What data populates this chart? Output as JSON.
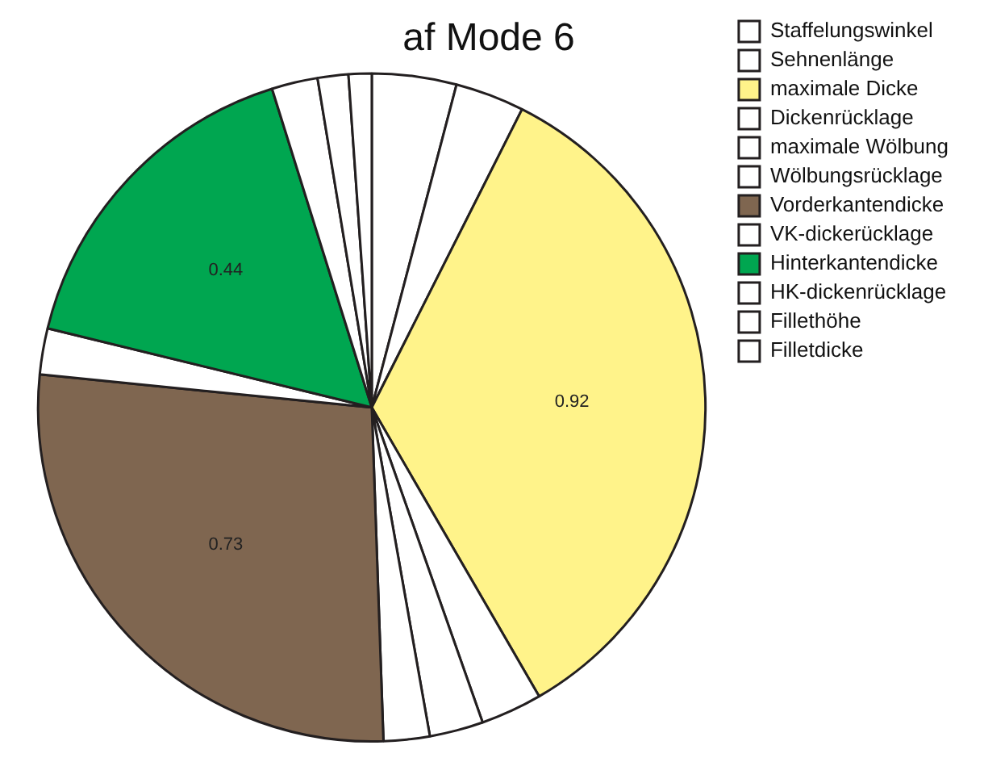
{
  "chart_data": {
    "type": "pie",
    "title": "af Mode 6",
    "categories": [
      "Staffelungswinkel",
      "Sehnenlänge",
      "maximale Dicke",
      "Dickenrücklage",
      "maximale Wölbung",
      "Wölbungsrücklage",
      "Vorderkantendicke",
      "VK-dickerücklage",
      "Hinterkantendicke",
      "HK-dickenrücklage",
      "Fillethöhe",
      "Filletdicke"
    ],
    "values": [
      0.11,
      0.09,
      0.92,
      0.08,
      0.07,
      0.06,
      0.73,
      0.06,
      0.44,
      0.06,
      0.04,
      0.03
    ],
    "colors": [
      "#ffffff",
      "#ffffff",
      "#fff38a",
      "#ffffff",
      "#ffffff",
      "#ffffff",
      "#7f6650",
      "#ffffff",
      "#00a650",
      "#ffffff",
      "#ffffff",
      "#ffffff"
    ],
    "value_labels": [
      null,
      null,
      "0.92",
      null,
      null,
      null,
      "0.73",
      null,
      "0.44",
      null,
      null,
      null
    ],
    "legend": "right"
  }
}
